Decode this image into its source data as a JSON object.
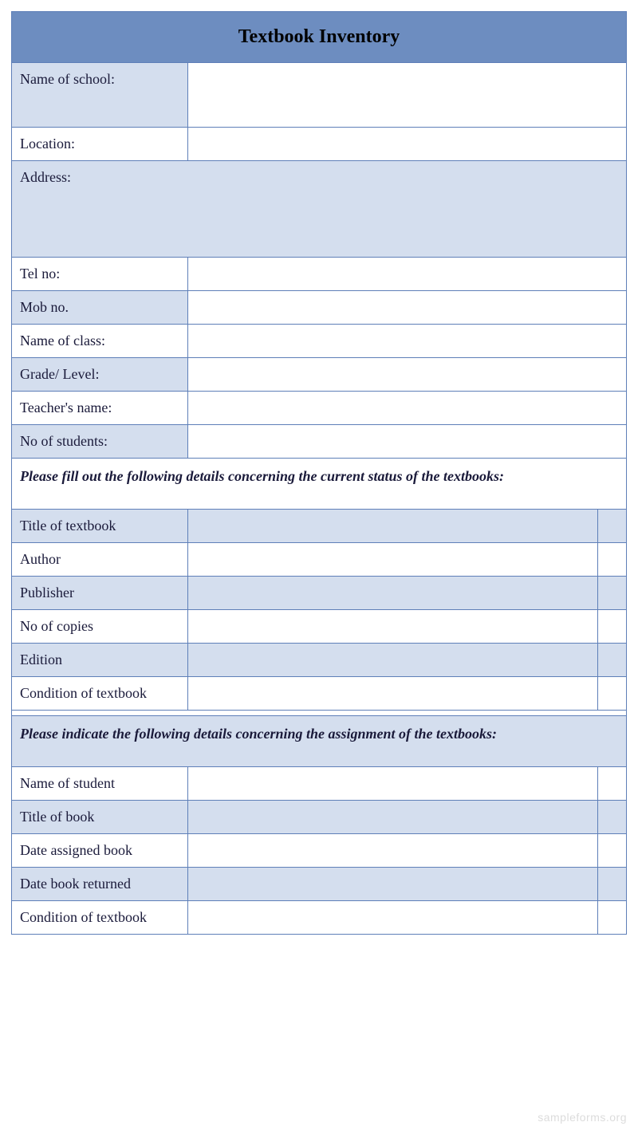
{
  "colors": {
    "header_bg": "#6d8dc0",
    "shade_bg": "#d4deee",
    "border": "#5e7fb8",
    "text": "#1a1a3a",
    "watermark": "#dcdcdc"
  },
  "title": "Textbook Inventory",
  "section1": {
    "rows": [
      {
        "label": "Name of school:",
        "shaded": true,
        "tall": true
      },
      {
        "label": "Location:",
        "shaded": false
      },
      {
        "label": "Address:",
        "shaded": true,
        "full": true,
        "address": true
      },
      {
        "label": "Tel no:",
        "shaded": false
      },
      {
        "label": "Mob no.",
        "shaded": true
      },
      {
        "label": "Name of class:",
        "shaded": false
      },
      {
        "label": "Grade/ Level:",
        "shaded": true
      },
      {
        "label": "Teacher's name:",
        "shaded": false
      },
      {
        "label": "No of students:",
        "shaded": true
      }
    ]
  },
  "section2": {
    "instruction": "Please fill out the following details concerning the current status of the textbooks:",
    "rows": [
      {
        "label": "Title of textbook",
        "shaded": true
      },
      {
        "label": "Author",
        "shaded": false
      },
      {
        "label": "Publisher",
        "shaded": true
      },
      {
        "label": "No of copies",
        "shaded": false
      },
      {
        "label": "Edition",
        "shaded": true
      },
      {
        "label": "Condition of textbook",
        "shaded": false
      }
    ]
  },
  "section3": {
    "instruction": "Please indicate the following details concerning the assignment of the textbooks:",
    "rows": [
      {
        "label": "Name of student",
        "shaded": false
      },
      {
        "label": "Title of book",
        "shaded": true
      },
      {
        "label": "Date assigned book",
        "shaded": false
      },
      {
        "label": "Date book returned",
        "shaded": true
      },
      {
        "label": "Condition of textbook",
        "shaded": false
      }
    ]
  },
  "watermark": "sampleforms.org"
}
